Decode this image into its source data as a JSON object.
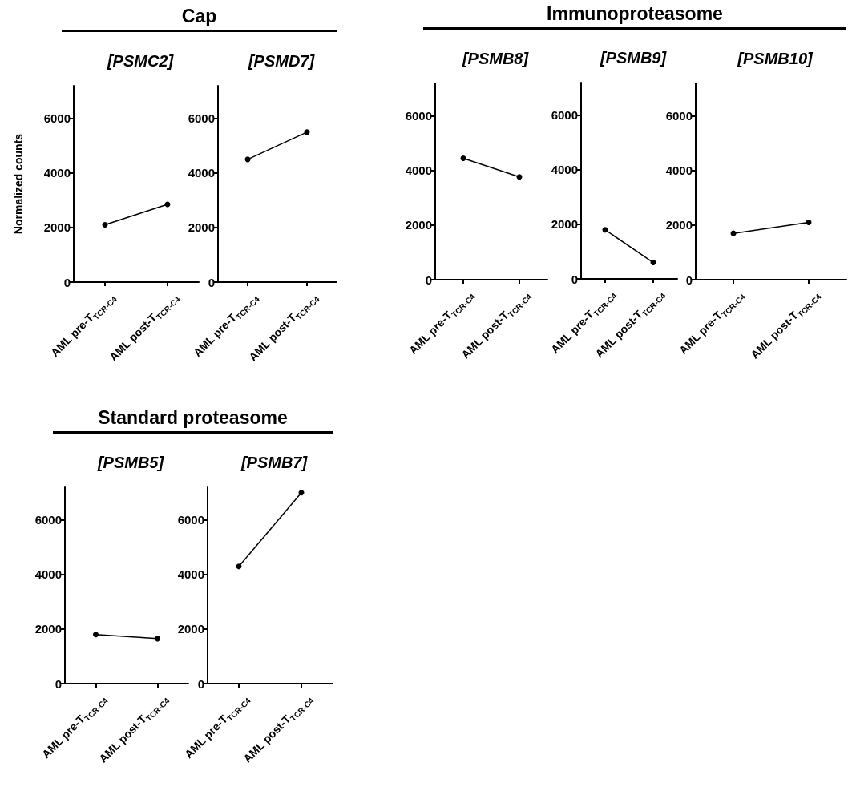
{
  "chart_data": [
    {
      "type": "line",
      "title": "[PSMC2]",
      "annotations": [
        "Cap"
      ],
      "ylabel": "Normalized counts",
      "categories": [
        "AML pre-T$_{TCR-C4}$",
        "AML post-T$_{TCR-C4}$"
      ],
      "values": [
        2100,
        2850
      ],
      "color": "#000000",
      "marker": "circle",
      "ylim": [
        0,
        7200
      ],
      "yticks": [
        0,
        2000,
        4000,
        6000
      ]
    },
    {
      "type": "line",
      "title": "[PSMD7]",
      "categories": [
        "AML pre-T$_{TCR-C4}$",
        "AML post-T$_{TCR-C4}$"
      ],
      "values": [
        4500,
        5500
      ],
      "color": "#000000",
      "marker": "circle",
      "ylim": [
        0,
        7200
      ],
      "yticks": [
        0,
        2000,
        4000,
        6000
      ]
    },
    {
      "type": "line",
      "title": "[PSMB8]",
      "annotations": [
        "Immunoproteasome"
      ],
      "categories": [
        "AML pre-T$_{TCR-C4}$",
        "AML post-T$_{TCR-C4}$"
      ],
      "values": [
        4450,
        3770
      ],
      "color": "#000000",
      "marker": "circle",
      "ylim": [
        0,
        7200
      ],
      "yticks": [
        0,
        2000,
        4000,
        6000
      ]
    },
    {
      "type": "line",
      "title": "[PSMB9]",
      "categories": [
        "AML pre-T$_{TCR-C4}$",
        "AML post-T$_{TCR-C4}$"
      ],
      "values": [
        1800,
        600
      ],
      "color": "#000000",
      "marker": "circle",
      "ylim": [
        0,
        7200
      ],
      "yticks": [
        0,
        2000,
        4000,
        6000
      ]
    },
    {
      "type": "line",
      "title": "[PSMB10]",
      "categories": [
        "AML pre-T$_{TCR-C4}$",
        "AML post-T$_{TCR-C4}$"
      ],
      "values": [
        1700,
        2100
      ],
      "color": "#000000",
      "marker": "circle",
      "ylim": [
        0,
        7200
      ],
      "yticks": [
        0,
        2000,
        4000,
        6000
      ]
    },
    {
      "type": "line",
      "title": "[PSMB5]",
      "annotations": [
        "Standard proteasome"
      ],
      "categories": [
        "AML pre-T$_{TCR-C4}$",
        "AML post-T$_{TCR-C4}$"
      ],
      "values": [
        1800,
        1650
      ],
      "color": "#000000",
      "marker": "circle",
      "ylim": [
        0,
        7200
      ],
      "yticks": [
        0,
        2000,
        4000,
        6000
      ]
    },
    {
      "type": "line",
      "title": "[PSMB7]",
      "categories": [
        "AML pre-T$_{TCR-C4}$",
        "AML post-T$_{TCR-C4}$"
      ],
      "values": [
        4300,
        7000
      ],
      "color": "#000000",
      "marker": "circle",
      "ylim": [
        0,
        7200
      ],
      "yticks": [
        0,
        2000,
        4000,
        6000
      ]
    }
  ]
}
